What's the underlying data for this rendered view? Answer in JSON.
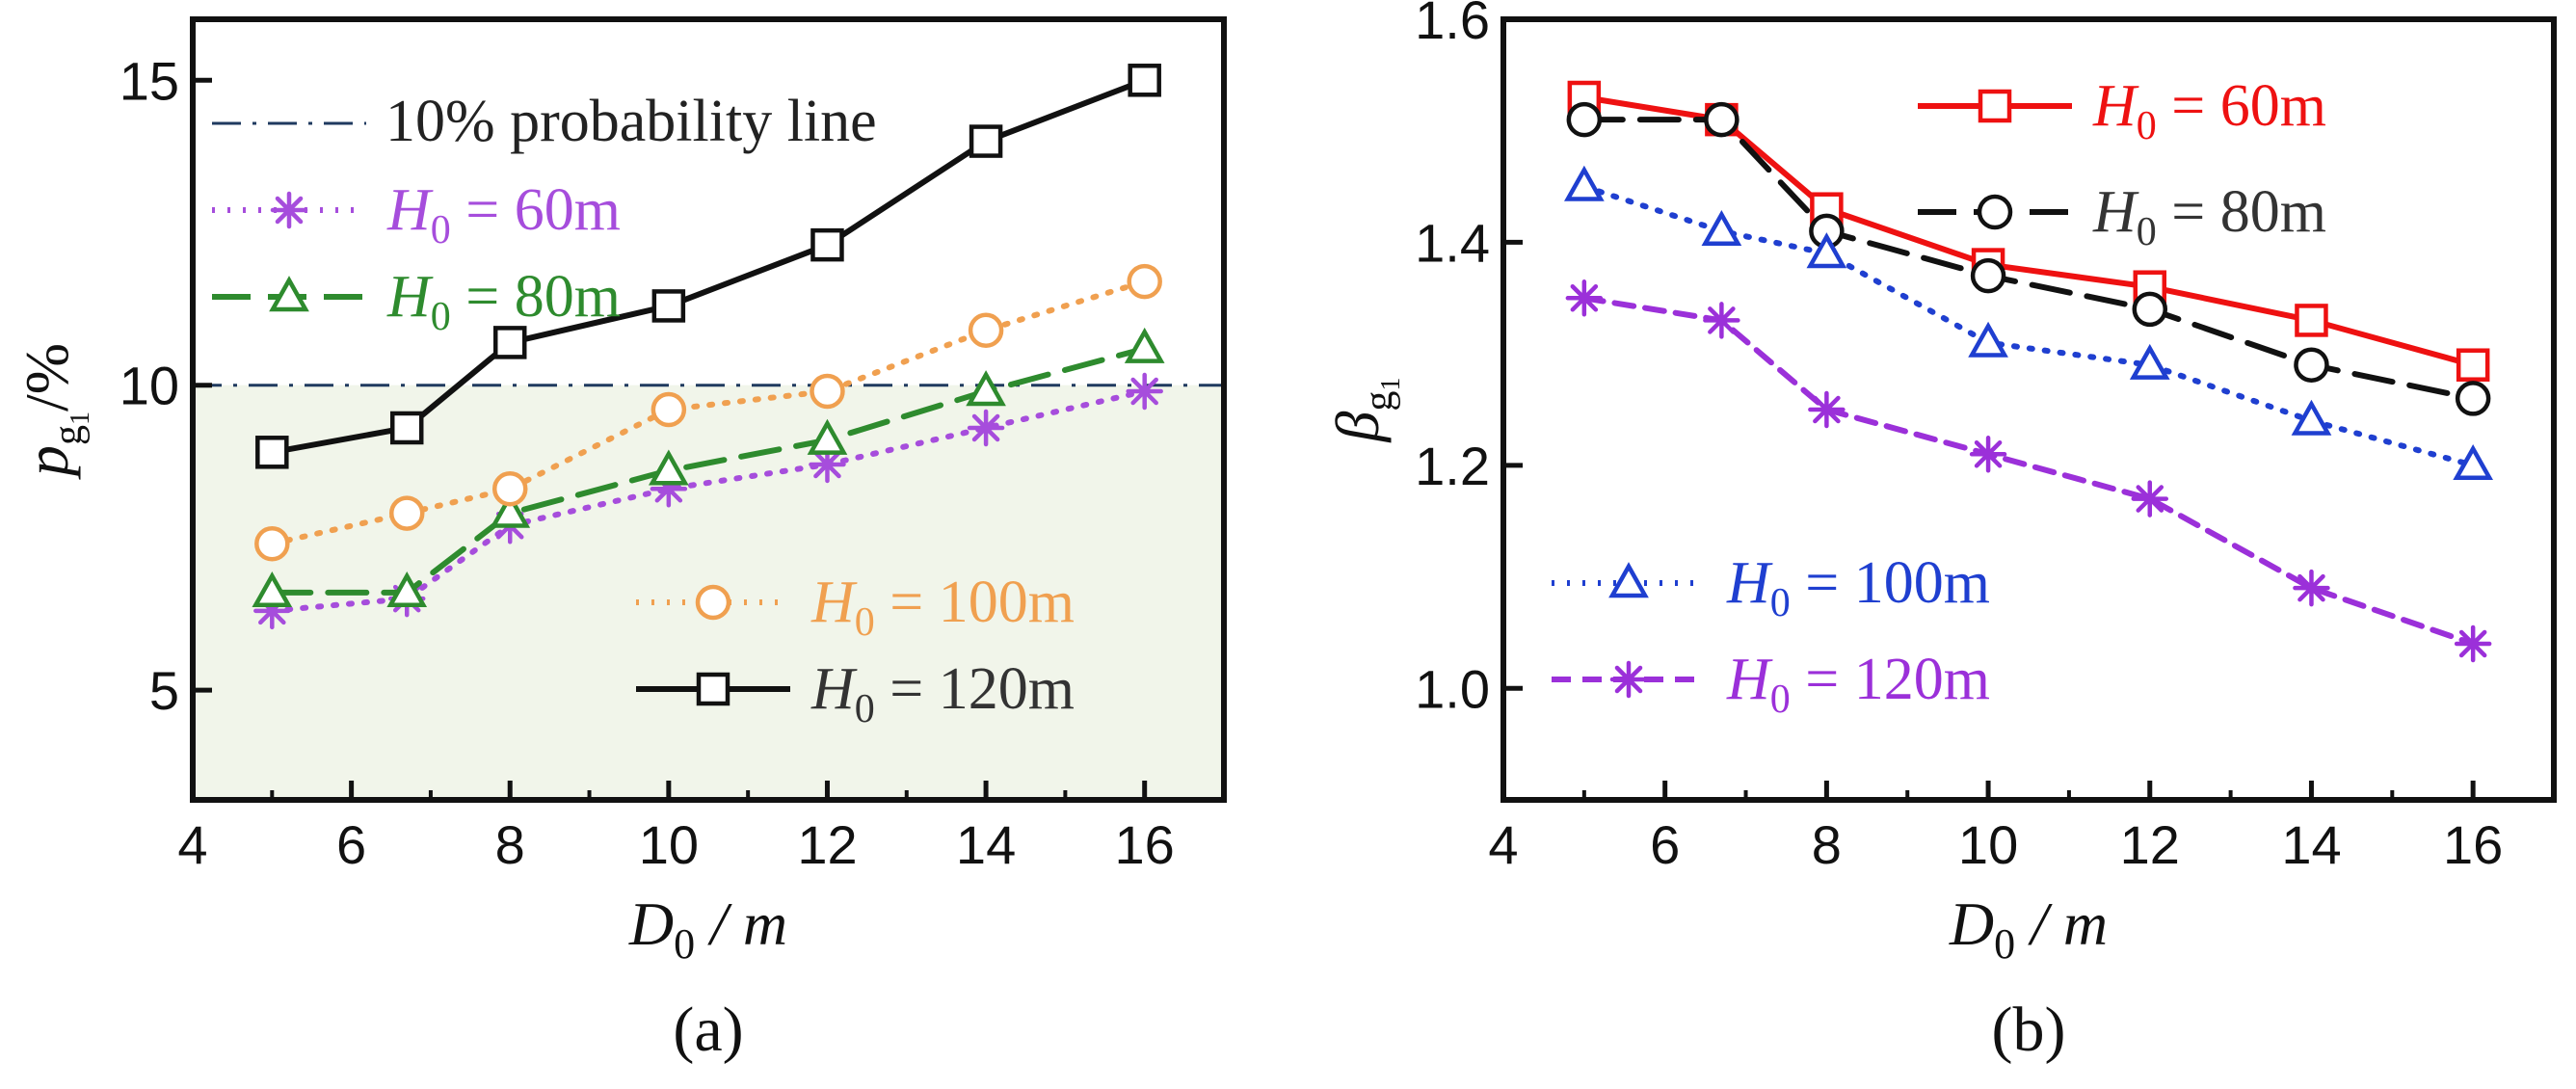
{
  "chart_data": [
    {
      "type": "line",
      "panel_label": "(a)",
      "xlabel": "D",
      "xlabel_sub": "0",
      "xlabel_tail": " / m",
      "ylabel": "p",
      "ylabel_sub": "g",
      "ylabel_subsub": "1",
      "ylabel_tail": "/%",
      "xlim": [
        4,
        17
      ],
      "ylim": [
        3.2,
        16.0
      ],
      "xticks": [
        4,
        6,
        8,
        10,
        12,
        14,
        16
      ],
      "yticks": [
        5,
        10,
        15
      ],
      "shaded_region_below": 10,
      "shade_color": "#f1f5ea",
      "reference_line": {
        "y": 10,
        "label": "10% probability line",
        "color": "#1f3a5f",
        "style": "dash-dot"
      },
      "legend_placement": "left and lower-right",
      "series": [
        {
          "name": "H0 = 60m",
          "legend_main": "H",
          "legend_sub": "0",
          "legend_tail": " = 60m",
          "color": "#a64ddc",
          "dash": "dotted",
          "marker": "asterisk",
          "legend_pos": "upper-left",
          "x": [
            5,
            6.7,
            8,
            10,
            12,
            14,
            16
          ],
          "y": [
            6.3,
            6.5,
            7.7,
            8.3,
            8.7,
            9.3,
            9.9
          ]
        },
        {
          "name": "H0 = 80m",
          "legend_main": "H",
          "legend_sub": "0",
          "legend_tail": " = 80m",
          "color": "#2e8b2e",
          "dash": "long-dash",
          "marker": "triangle",
          "legend_pos": "upper-left",
          "x": [
            5,
            6.7,
            8,
            10,
            12,
            14,
            16
          ],
          "y": [
            6.6,
            6.6,
            7.9,
            8.6,
            9.1,
            9.9,
            10.6
          ]
        },
        {
          "name": "H0 = 100m",
          "legend_main": "H",
          "legend_sub": "0",
          "legend_tail": " = 100m",
          "color": "#f0a050",
          "dash": "dotted",
          "marker": "circle",
          "legend_pos": "lower-right",
          "x": [
            5,
            6.7,
            8,
            10,
            12,
            14,
            16
          ],
          "y": [
            7.4,
            7.9,
            8.3,
            9.6,
            9.9,
            10.9,
            11.7
          ]
        },
        {
          "name": "H0 = 120m",
          "legend_main": "H",
          "legend_sub": "0",
          "legend_tail": " = 120m",
          "color": "#111111",
          "dash": "solid",
          "marker": "square",
          "legend_pos": "lower-right",
          "x": [
            5,
            6.7,
            8,
            10,
            12,
            14,
            16
          ],
          "y": [
            8.9,
            9.3,
            10.7,
            11.3,
            12.3,
            14.0,
            15.0
          ]
        }
      ]
    },
    {
      "type": "line",
      "panel_label": "(b)",
      "xlabel": "D",
      "xlabel_sub": "0",
      "xlabel_tail": " / m",
      "ylabel": "β",
      "ylabel_sub": "g",
      "ylabel_subsub": "1",
      "xlim": [
        4,
        17
      ],
      "ylim": [
        0.9,
        1.6
      ],
      "xticks": [
        4,
        6,
        8,
        10,
        12,
        14,
        16
      ],
      "yticks": [
        1.0,
        1.2,
        1.4,
        1.6
      ],
      "ytick_labels": [
        "1.0",
        "1.2",
        "1.4",
        "1.6"
      ],
      "legend_placement": "upper-right and lower-left",
      "series": [
        {
          "name": "H0 = 60m",
          "legend_main": "H",
          "legend_sub": "0",
          "legend_tail": " = 60m",
          "color": "#ee1111",
          "dash": "solid",
          "marker": "square",
          "legend_pos": "upper-right",
          "x": [
            5,
            6.7,
            8,
            10,
            12,
            14,
            16
          ],
          "y": [
            1.53,
            1.51,
            1.43,
            1.38,
            1.36,
            1.33,
            1.29
          ]
        },
        {
          "name": "H0 = 80m",
          "legend_main": "H",
          "legend_sub": "0",
          "legend_tail": " = 80m",
          "color": "#111111",
          "dash": "long-dash",
          "marker": "circle",
          "legend_pos": "upper-right",
          "x": [
            5,
            6.7,
            8,
            10,
            12,
            14,
            16
          ],
          "y": [
            1.51,
            1.51,
            1.41,
            1.37,
            1.34,
            1.29,
            1.26
          ]
        },
        {
          "name": "H0 = 100m",
          "legend_main": "H",
          "legend_sub": "0",
          "legend_tail": " = 100m",
          "color": "#1f3fd0",
          "dash": "dotted",
          "marker": "triangle",
          "legend_pos": "lower-left",
          "x": [
            5,
            6.7,
            8,
            10,
            12,
            14,
            16
          ],
          "y": [
            1.45,
            1.41,
            1.39,
            1.31,
            1.29,
            1.24,
            1.2
          ]
        },
        {
          "name": "H0 = 120m",
          "legend_main": "H",
          "legend_sub": "0",
          "legend_tail": " = 120m",
          "color": "#9b30d9",
          "dash": "short-dash",
          "marker": "asterisk",
          "legend_pos": "lower-left",
          "x": [
            5,
            6.7,
            8,
            10,
            12,
            14,
            16
          ],
          "y": [
            1.35,
            1.33,
            1.25,
            1.21,
            1.17,
            1.09,
            1.04
          ]
        }
      ]
    }
  ]
}
